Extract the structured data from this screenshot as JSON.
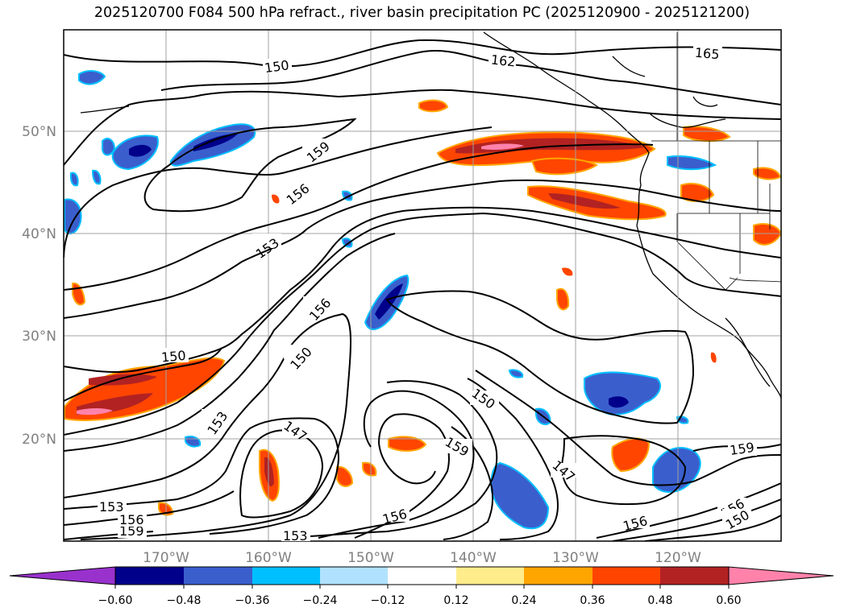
{
  "title": "2025120700 F084 500 hPa refract., river basin precipitation PC (2025120900 - 2025121200)",
  "axes": {
    "lon_labels": [
      "170°W",
      "160°W",
      "150°W",
      "140°W",
      "130°W",
      "120°W"
    ],
    "lat_labels": [
      "50°N",
      "40°N",
      "30°N",
      "20°N"
    ]
  },
  "contour_labels": [
    "162",
    "165",
    "150",
    "159",
    "156",
    "153",
    "156",
    "150",
    "150",
    "153",
    "147",
    "159",
    "150",
    "147",
    "153",
    "156",
    "156",
    "153",
    "159",
    "156",
    "159",
    "156",
    "150"
  ],
  "colorbar": {
    "ticks": [
      "−0.60",
      "−0.48",
      "−0.36",
      "−0.24",
      "−0.12",
      "0.12",
      "0.24",
      "0.36",
      "0.48",
      "0.60"
    ],
    "colors": [
      "#9932cc",
      "#00008b",
      "#3a5fcd",
      "#00bfff",
      "#b0e2ff",
      "#ffffff",
      "#ffec8b",
      "#ffa500",
      "#ff4500",
      "#b22222",
      "#ff82ab"
    ]
  },
  "chart_data": {
    "type": "contour map",
    "title": "2025120700 F084 500 hPa refract., river basin precipitation PC (2025120900 - 2025121200)",
    "variables": [
      "500 hPa refractivity contours",
      "river basin precipitation PC (shaded)"
    ],
    "lon_range": [
      "180°W",
      "110°W"
    ],
    "lat_range": [
      "10°N",
      "60°N"
    ],
    "contour_levels": [
      147,
      150,
      153,
      156,
      159,
      162,
      165
    ],
    "shading_levels": [
      -0.6,
      -0.48,
      -0.36,
      -0.24,
      -0.12,
      0.12,
      0.24,
      0.36,
      0.48,
      0.6
    ]
  }
}
